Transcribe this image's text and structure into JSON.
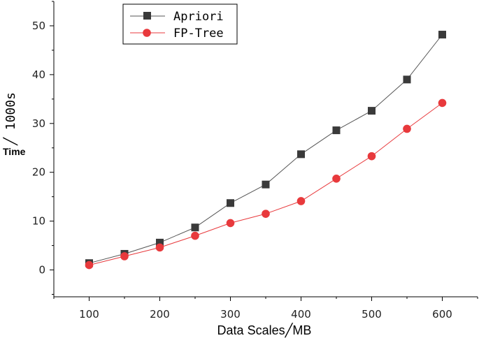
{
  "chart_data": {
    "type": "line",
    "title": "",
    "xlabel": "Data Scales╱MB",
    "ylabel_unit": "╱ 1000s",
    "ylabel_word": "Time",
    "x": [
      100,
      150,
      200,
      250,
      300,
      350,
      400,
      450,
      500,
      550,
      600
    ],
    "x_ticks": [
      100,
      200,
      300,
      400,
      500,
      600
    ],
    "y_ticks": [
      0,
      10,
      20,
      30,
      40,
      50
    ],
    "xlim": [
      50,
      650
    ],
    "ylim": [
      -5.5,
      55
    ],
    "grid": false,
    "legend_position": "top-left",
    "series": [
      {
        "name": "Apriori",
        "color": "#3a3a3a",
        "line_color": "#555555",
        "marker": "square",
        "values": [
          1.4,
          3.3,
          5.6,
          8.7,
          13.7,
          17.5,
          23.7,
          28.6,
          32.6,
          39.0,
          48.2
        ]
      },
      {
        "name": "FP-Tree",
        "color": "#e8393c",
        "line_color": "#e8393c",
        "marker": "circle",
        "values": [
          1.0,
          2.8,
          4.6,
          7.0,
          9.6,
          11.5,
          14.1,
          18.7,
          23.3,
          28.9,
          34.2
        ]
      }
    ]
  }
}
